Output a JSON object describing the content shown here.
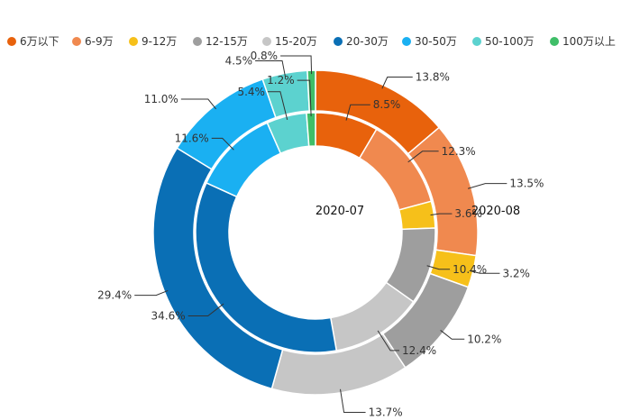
{
  "chart_data": {
    "type": "donut",
    "title": "",
    "categories": [
      "6万以下",
      "6-9万",
      "9-12万",
      "12-15万",
      "15-20万",
      "20-30万",
      "30-50万",
      "50-100万",
      "100万以上"
    ],
    "colors": [
      "#e8620c",
      "#f0894f",
      "#f6c01a",
      "#9e9e9e",
      "#c6c6c6",
      "#0a6fb5",
      "#1ab0f2",
      "#5cd2cf",
      "#3fbe68"
    ],
    "legend_position": "top",
    "series": [
      {
        "name": "2020-07",
        "ring": "inner",
        "values": [
          8.5,
          12.3,
          3.6,
          10.4,
          12.4,
          34.6,
          11.6,
          5.4,
          1.2
        ],
        "labels": [
          "8.5%",
          "12.3%",
          "3.6%",
          "10.4%",
          "12.4%",
          "34.6%",
          "11.6%",
          "5.4%",
          "1.2%"
        ]
      },
      {
        "name": "2020-08",
        "ring": "outer",
        "values": [
          13.8,
          13.5,
          3.2,
          10.2,
          13.7,
          29.4,
          11.0,
          4.5,
          0.8
        ],
        "labels": [
          "13.8%",
          "13.5%",
          "3.2%",
          "10.2%",
          "13.7%",
          "29.4%",
          "11.0%",
          "4.5%",
          "0.8%"
        ]
      }
    ]
  }
}
